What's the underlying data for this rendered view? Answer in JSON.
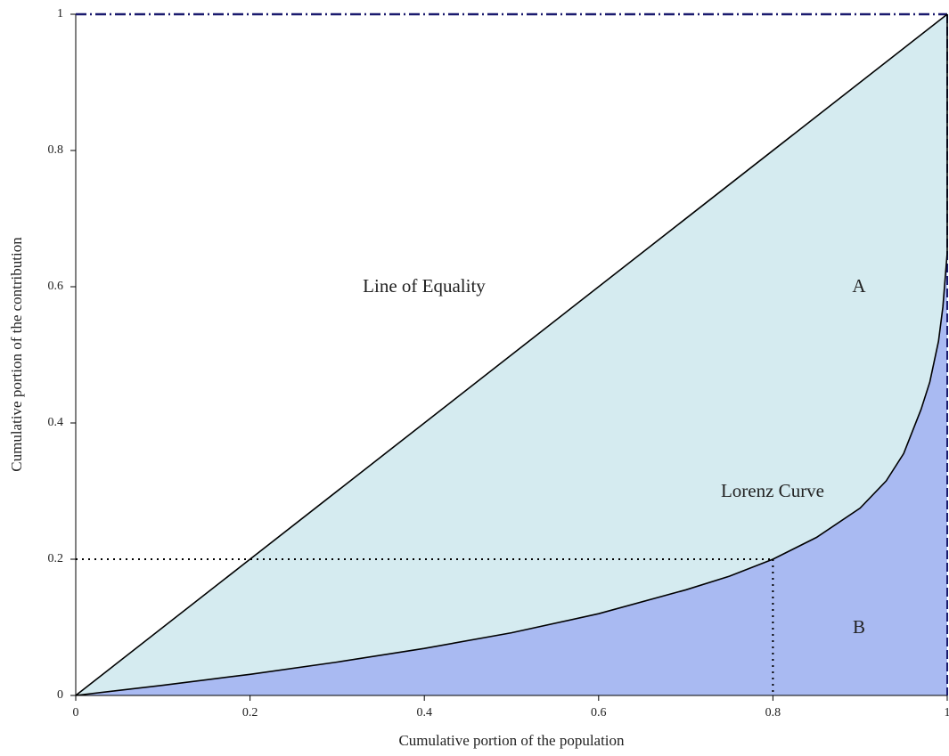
{
  "chart_data": {
    "type": "lorenz",
    "xlabel": "Cumulative portion of the population",
    "ylabel": "Cumulative portion of the contribution",
    "xlim": [
      0,
      1
    ],
    "ylim": [
      0,
      1
    ],
    "xticks": [
      0,
      0.2,
      0.4,
      0.6,
      0.8,
      1
    ],
    "yticks": [
      0,
      0.2,
      0.4,
      0.6,
      0.8,
      1
    ],
    "series": [
      {
        "name": "Line of Equality",
        "color": "#000000",
        "x": [
          0,
          1
        ],
        "values": [
          0,
          1
        ]
      },
      {
        "name": "Lorenz Curve",
        "color": "#000000",
        "x": [
          0,
          0.1,
          0.2,
          0.3,
          0.4,
          0.5,
          0.6,
          0.7,
          0.75,
          0.8,
          0.85,
          0.9,
          0.93,
          0.95,
          0.97,
          0.98,
          0.99,
          0.995,
          1,
          1
        ],
        "values": [
          0,
          0.015,
          0.031,
          0.049,
          0.069,
          0.092,
          0.12,
          0.155,
          0.175,
          0.2,
          0.232,
          0.275,
          0.315,
          0.355,
          0.42,
          0.46,
          0.52,
          0.57,
          0.65,
          1
        ]
      }
    ],
    "areas": [
      {
        "label": "A",
        "color": "#d5ebf0"
      },
      {
        "label": "B",
        "color": "#a9baf2"
      }
    ],
    "reference_point": {
      "x": 0.8,
      "y": 0.2
    },
    "frame_color": "#1a1a6e"
  }
}
